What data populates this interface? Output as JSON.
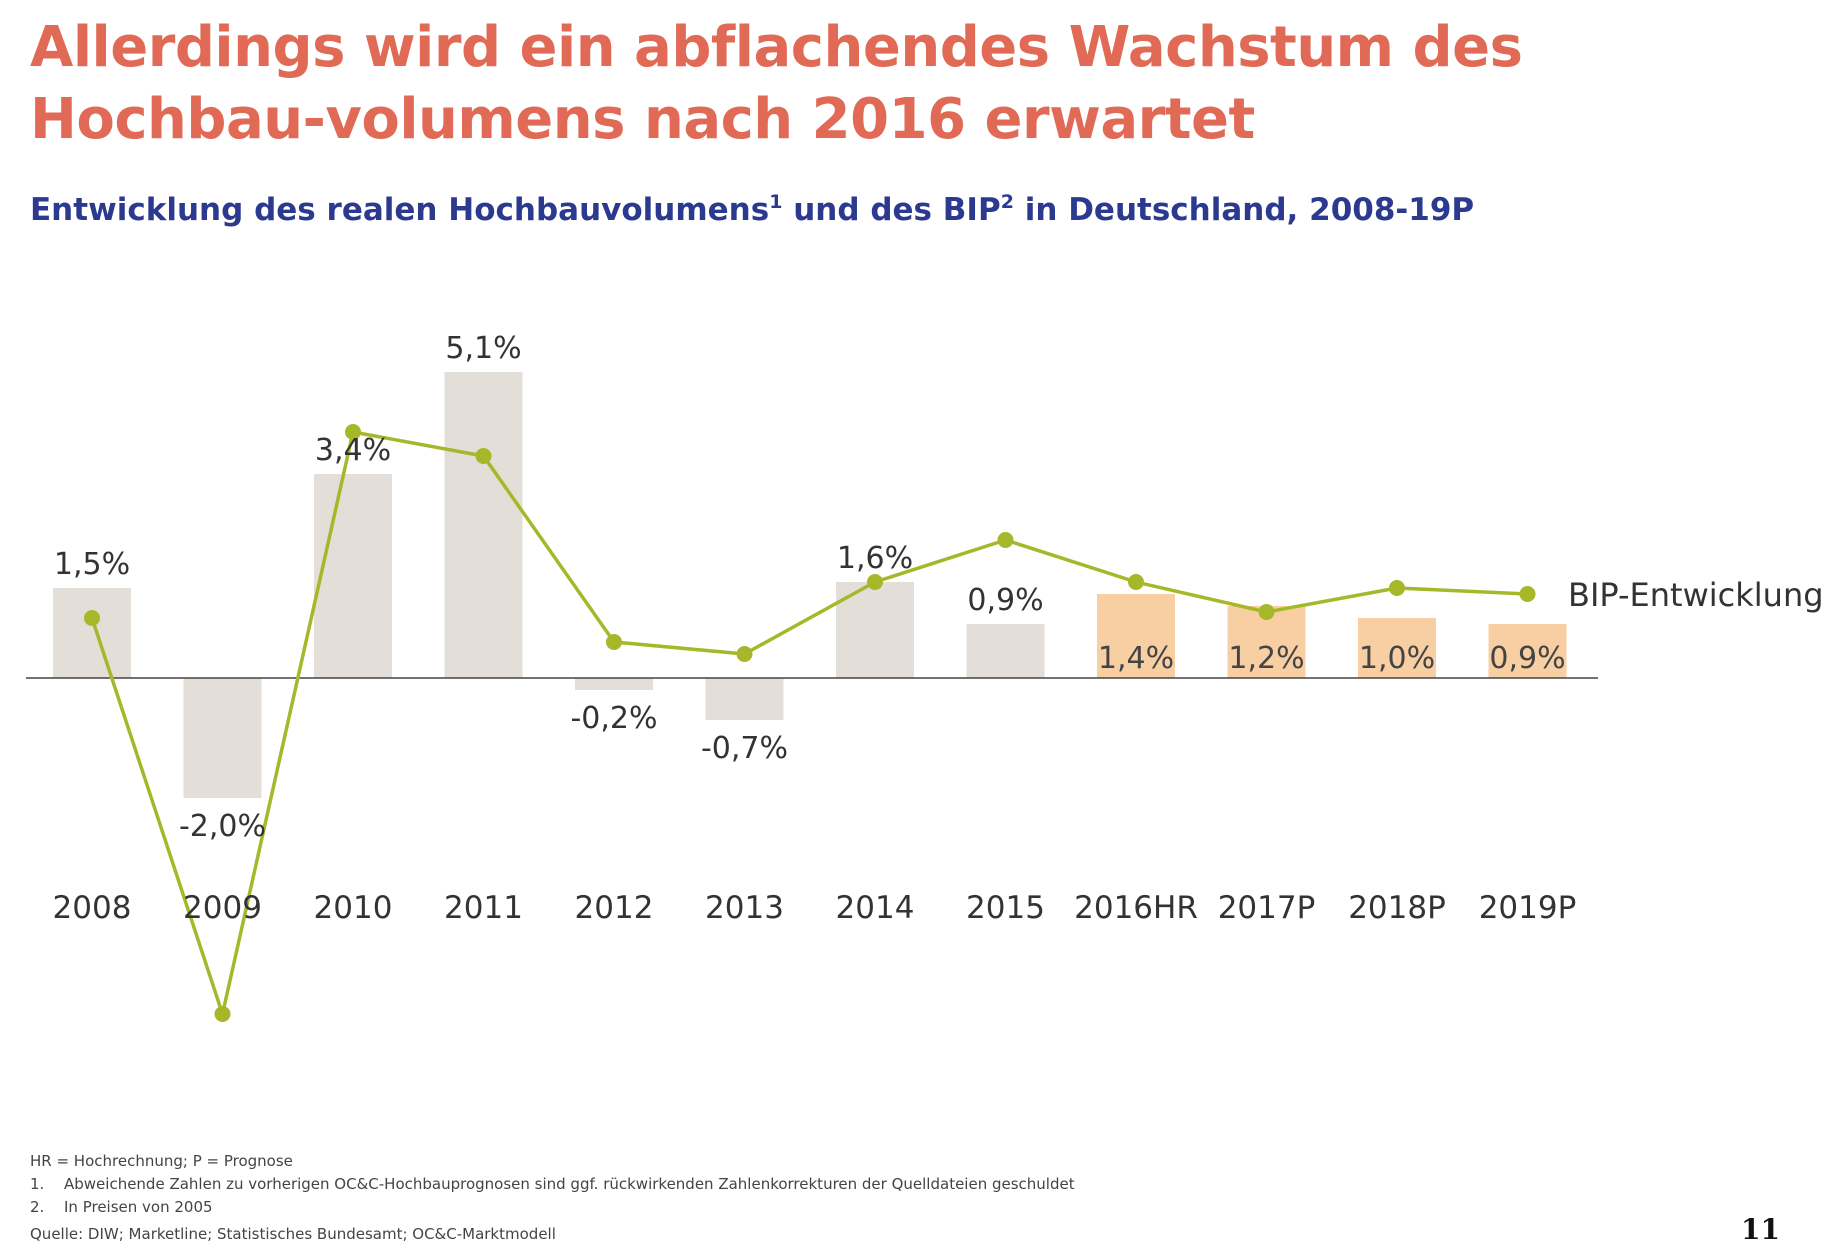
{
  "title": "Allerdings wird ein abflachendes Wachstum des Hochbau-volumens nach 2016 erwartet",
  "subtitle": {
    "part1": "Entwicklung des realen Hochbauvolumens",
    "sup1": "1",
    "part2": " und des BIP",
    "sup2": "2",
    "part3": " in Deutschland, 2008-19P"
  },
  "chart_data": {
    "type": "bar",
    "title": "Entwicklung des realen Hochbauvolumens und des BIP in Deutschland, 2008-19P",
    "categories": [
      "2008",
      "2009",
      "2010",
      "2011",
      "2012",
      "2013",
      "2014",
      "2015",
      "2016HR",
      "2017P",
      "2018P",
      "2019P"
    ],
    "series": [
      {
        "name": "",
        "type": "bar",
        "values": [
          1.5,
          -2.0,
          3.4,
          5.1,
          -0.2,
          -0.7,
          1.6,
          0.9,
          1.4,
          1.2,
          1.0,
          0.9
        ],
        "labels": [
          "1,5%",
          "-2,0%",
          "3,4%",
          "5,1%",
          "-0,2%",
          "-0,7%",
          "1,6%",
          "0,9%",
          "1,4%",
          "1,2%",
          "1,0%",
          "0,9%"
        ]
      },
      {
        "name": "BIP-Entwicklung",
        "type": "line",
        "values": [
          1.0,
          -5.6,
          4.1,
          3.7,
          0.6,
          0.4,
          1.6,
          2.3,
          1.6,
          1.1,
          1.5,
          1.4
        ]
      }
    ],
    "forecast_start_index": 8,
    "ylim": [
      -6,
      5.2
    ],
    "grid": false,
    "legend": "right-inline",
    "colors": {
      "bar": "#e3ded8",
      "bar_forecast": "#f8cfa3",
      "line": "#a6b82a",
      "axis": "#444444"
    }
  },
  "footnotes": [
    {
      "marker": "",
      "text": "HR = Hochrechnung; P = Prognose"
    },
    {
      "marker": "1.",
      "text": "Abweichende Zahlen zu vorherigen OC&C-Hochbauprognosen sind ggf. rückwirkenden Zahlenkorrekturen der Quelldateien geschuldet"
    },
    {
      "marker": "2.",
      "text": "In Preisen von 2005"
    }
  ],
  "source": "Quelle: DIW; Marketline; Statistisches Bundesamt; OC&C-Marktmodell",
  "page_number": "11"
}
